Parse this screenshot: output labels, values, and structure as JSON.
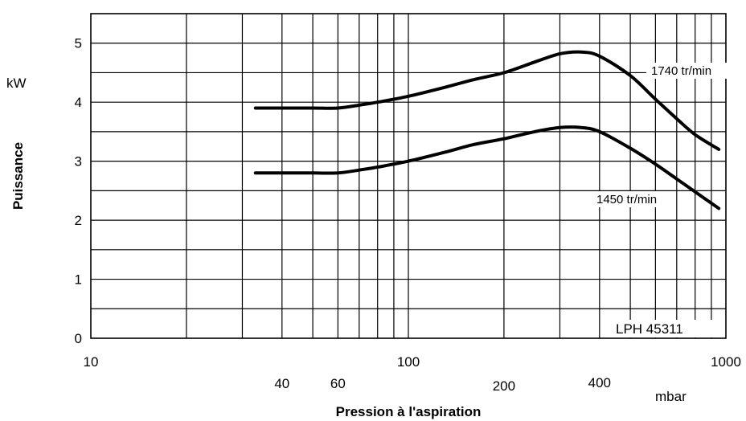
{
  "chart_data": {
    "type": "line",
    "x_scale": "log",
    "xlim": [
      10,
      1000
    ],
    "ylim": [
      0,
      5.5
    ],
    "xlabel": "Pression à l'aspiration",
    "xunit": "mbar",
    "ylabel": "Puissance",
    "yunit": "kW",
    "grid": true,
    "y_ticks": [
      "0",
      "1",
      "2",
      "3",
      "4",
      "5"
    ],
    "x_ticks_main": [
      "10",
      "100",
      "1000"
    ],
    "x_ticks_secondary": [
      "40",
      "60",
      "200",
      "400"
    ],
    "model_label": "LPH 45311",
    "series": [
      {
        "name": "1740 tr/min",
        "x": [
          33,
          40,
          50,
          60,
          70,
          80,
          100,
          130,
          160,
          200,
          250,
          300,
          350,
          400,
          500,
          600,
          700,
          800,
          950
        ],
        "y": [
          3.9,
          3.9,
          3.9,
          3.9,
          3.95,
          4.0,
          4.1,
          4.25,
          4.38,
          4.5,
          4.68,
          4.82,
          4.85,
          4.78,
          4.45,
          4.05,
          3.72,
          3.45,
          3.2
        ]
      },
      {
        "name": "1450 tr/min",
        "x": [
          33,
          40,
          50,
          60,
          70,
          80,
          100,
          130,
          160,
          200,
          250,
          300,
          350,
          400,
          500,
          600,
          700,
          800,
          950
        ],
        "y": [
          2.8,
          2.8,
          2.8,
          2.8,
          2.85,
          2.9,
          3.0,
          3.15,
          3.28,
          3.38,
          3.5,
          3.57,
          3.57,
          3.5,
          3.22,
          2.95,
          2.7,
          2.48,
          2.2
        ]
      }
    ]
  }
}
